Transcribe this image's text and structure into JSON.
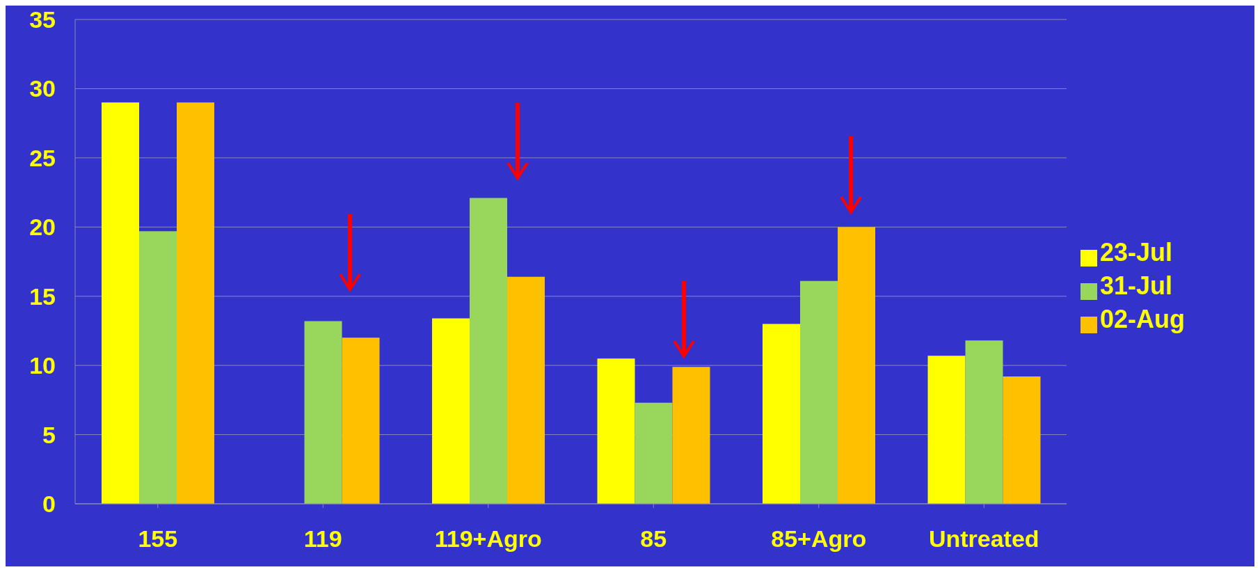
{
  "chart_data": {
    "type": "bar",
    "categories": [
      "155",
      "119",
      "119+Agro",
      "85",
      "85+Agro",
      "Untreated"
    ],
    "series": [
      {
        "name": "23-Jul",
        "color": "#ffff00",
        "values": [
          29,
          null,
          13.4,
          10.5,
          13,
          10.7
        ]
      },
      {
        "name": "31-Jul",
        "color": "#99d65c",
        "values": [
          19.7,
          13.2,
          22.1,
          7.3,
          16.1,
          11.8
        ]
      },
      {
        "name": "02-Aug",
        "color": "#ffc000",
        "values": [
          29,
          12,
          16.4,
          9.9,
          20,
          9.2
        ]
      }
    ],
    "ylim": [
      0,
      35
    ],
    "yticks": [
      0,
      5,
      10,
      15,
      20,
      25,
      30,
      35
    ],
    "grid": "y",
    "legend": "right"
  }
}
